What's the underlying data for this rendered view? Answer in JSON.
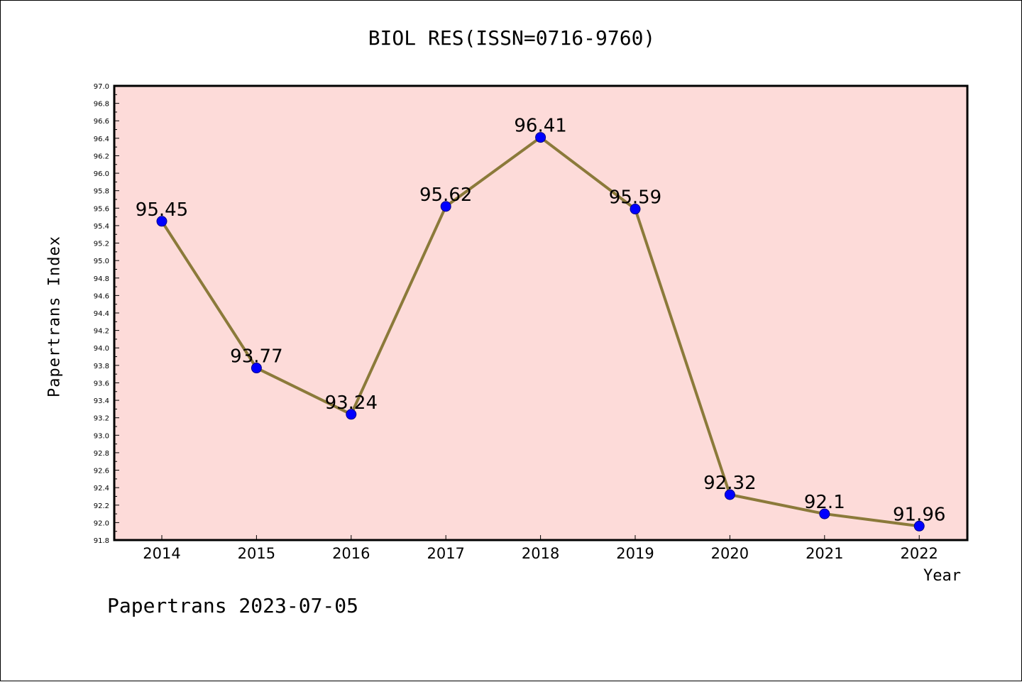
{
  "chart_data": {
    "type": "line",
    "title": "BIOL RES(ISSN=0716-9760)",
    "xlabel": "Year",
    "ylabel": "Papertrans Index",
    "categories": [
      "2014",
      "2015",
      "2016",
      "2017",
      "2018",
      "2019",
      "2020",
      "2021",
      "2022"
    ],
    "series": [
      {
        "values": [
          95.45,
          93.77,
          93.24,
          95.62,
          96.41,
          95.59,
          92.32,
          92.1,
          91.96
        ],
        "labels": [
          "95.45",
          "93.77",
          "93.24",
          "95.62",
          "96.41",
          "95.59",
          "92.32",
          "92.1",
          "91.96"
        ],
        "line_color": "#8b7a3a",
        "marker_color": "#0000ff"
      }
    ],
    "ylim": [
      91.8,
      97.0
    ],
    "ytick_step": 0.2,
    "grid": false,
    "plot_background": "#fddbd9"
  },
  "footer": {
    "text": "Papertrans 2023-07-05"
  }
}
